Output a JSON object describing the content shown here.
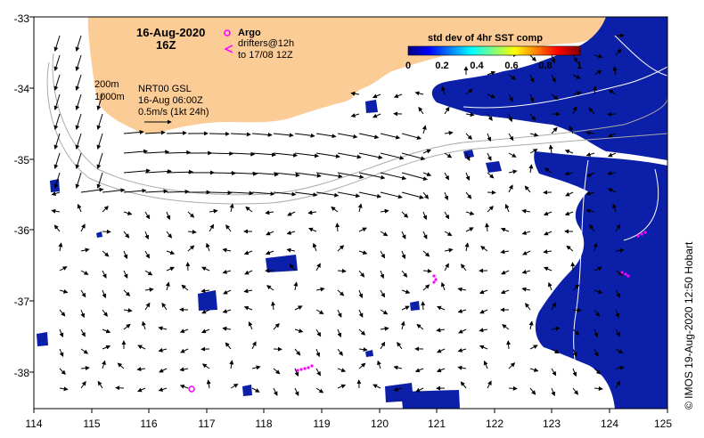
{
  "map": {
    "date_title": "16-Aug-2020",
    "hour_title": "16Z",
    "argo_label": "Argo",
    "drifters_label": "drifters@12h",
    "drifters_until": "to 17/08 12Z",
    "contour_label_200": "200m",
    "contour_label_1000": "1000m",
    "current_source": "NRT00 GSL",
    "current_time": "16-Aug 06:00Z",
    "current_scale": "0.5m/s (1kt 24h)",
    "colorbar_title": "std dev of 4hr SST comp",
    "colorbar_ticks": [
      "0",
      "0.2",
      "0.4",
      "0.6",
      "0.8",
      "1"
    ],
    "lon_ticks": [
      "114",
      "115",
      "116",
      "117",
      "118",
      "119",
      "120",
      "121",
      "122",
      "123",
      "124",
      "125"
    ],
    "lat_ticks": [
      "-33",
      "-34",
      "-35",
      "-36",
      "-37",
      "-38"
    ],
    "credit": "© IMOS 19-Aug-2020 12:50 Hobart"
  },
  "colors": {
    "land": "#fccc96",
    "data_blue": "#0b1fa8",
    "argo": "#ff00ff",
    "contour": "#aaaaaa",
    "colorbar": [
      "#00007f",
      "#0000ff",
      "#00ffff",
      "#ffff00",
      "#ff0000",
      "#7f0000"
    ]
  }
}
